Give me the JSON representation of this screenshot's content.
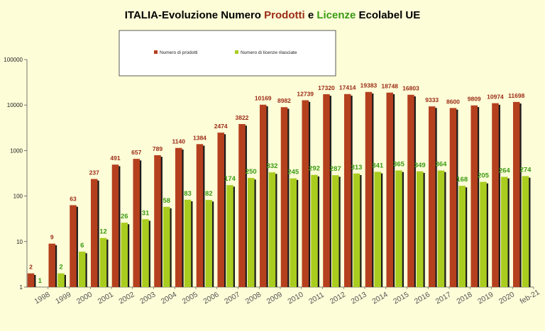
{
  "colors": {
    "background": "#fdfdd8",
    "prodotti": "#b5401e",
    "licenze": "#a9cc1e",
    "shadow": "#1a1a1a",
    "prodotti_label": "#9b2a14",
    "licenze_label": "#3a9a12",
    "title": "#000000"
  },
  "chart_data": {
    "type": "bar",
    "title_parts": [
      "ITALIA-Evoluzione Numero ",
      "Prodotti",
      " e ",
      "Licenze",
      " Ecolabel UE"
    ],
    "xlabel": "",
    "ylabel": "",
    "yscale": "log",
    "ylim": [
      1,
      100000
    ],
    "y_ticks": [
      "1",
      "10",
      "100",
      "1000",
      "10000",
      "100000"
    ],
    "grid": false,
    "legend": "top-center",
    "categories": [
      "1998",
      "1999",
      "2000",
      "2001",
      "2002",
      "2003",
      "2004",
      "2005",
      "2006",
      "2007",
      "2008",
      "2009",
      "2010",
      "2011",
      "2012",
      "2013",
      "2014",
      "2015",
      "2016",
      "2017",
      "2018",
      "2019",
      "2020",
      "feb-21"
    ],
    "series": [
      {
        "name": "Numero di prodotti",
        "values": [
          2,
          9,
          63,
          237,
          491,
          657,
          789,
          1140,
          1384,
          2474,
          3822,
          10169,
          8982,
          12739,
          17320,
          17414,
          19383,
          18748,
          16803,
          9333,
          8600,
          9809,
          10974,
          11698
        ],
        "labels": [
          "2",
          "9",
          "63",
          "237",
          "491",
          "657",
          "789",
          "1140",
          "1384",
          "2474",
          "3822",
          "10169",
          "8982",
          "12739",
          "17320",
          "17414",
          "19383",
          "18748",
          "16803",
          "9333",
          "8600",
          "9809",
          "10974",
          "11698"
        ]
      },
      {
        "name": "Numero di licenze rilasciate",
        "values": [
          1,
          2,
          6,
          12,
          26,
          31,
          58,
          83,
          82,
          174,
          250,
          332,
          245,
          292,
          287,
          313,
          341,
          365,
          349,
          364,
          168,
          205,
          264,
          274
        ],
        "labels": [
          "1",
          "2",
          "6",
          "12",
          "26",
          "31",
          "58",
          "83",
          "82",
          "174",
          "250",
          "332",
          "245",
          "292",
          "287",
          "313",
          "341",
          "365",
          "349",
          "364",
          "168",
          "205",
          "264",
          "274"
        ]
      }
    ]
  }
}
